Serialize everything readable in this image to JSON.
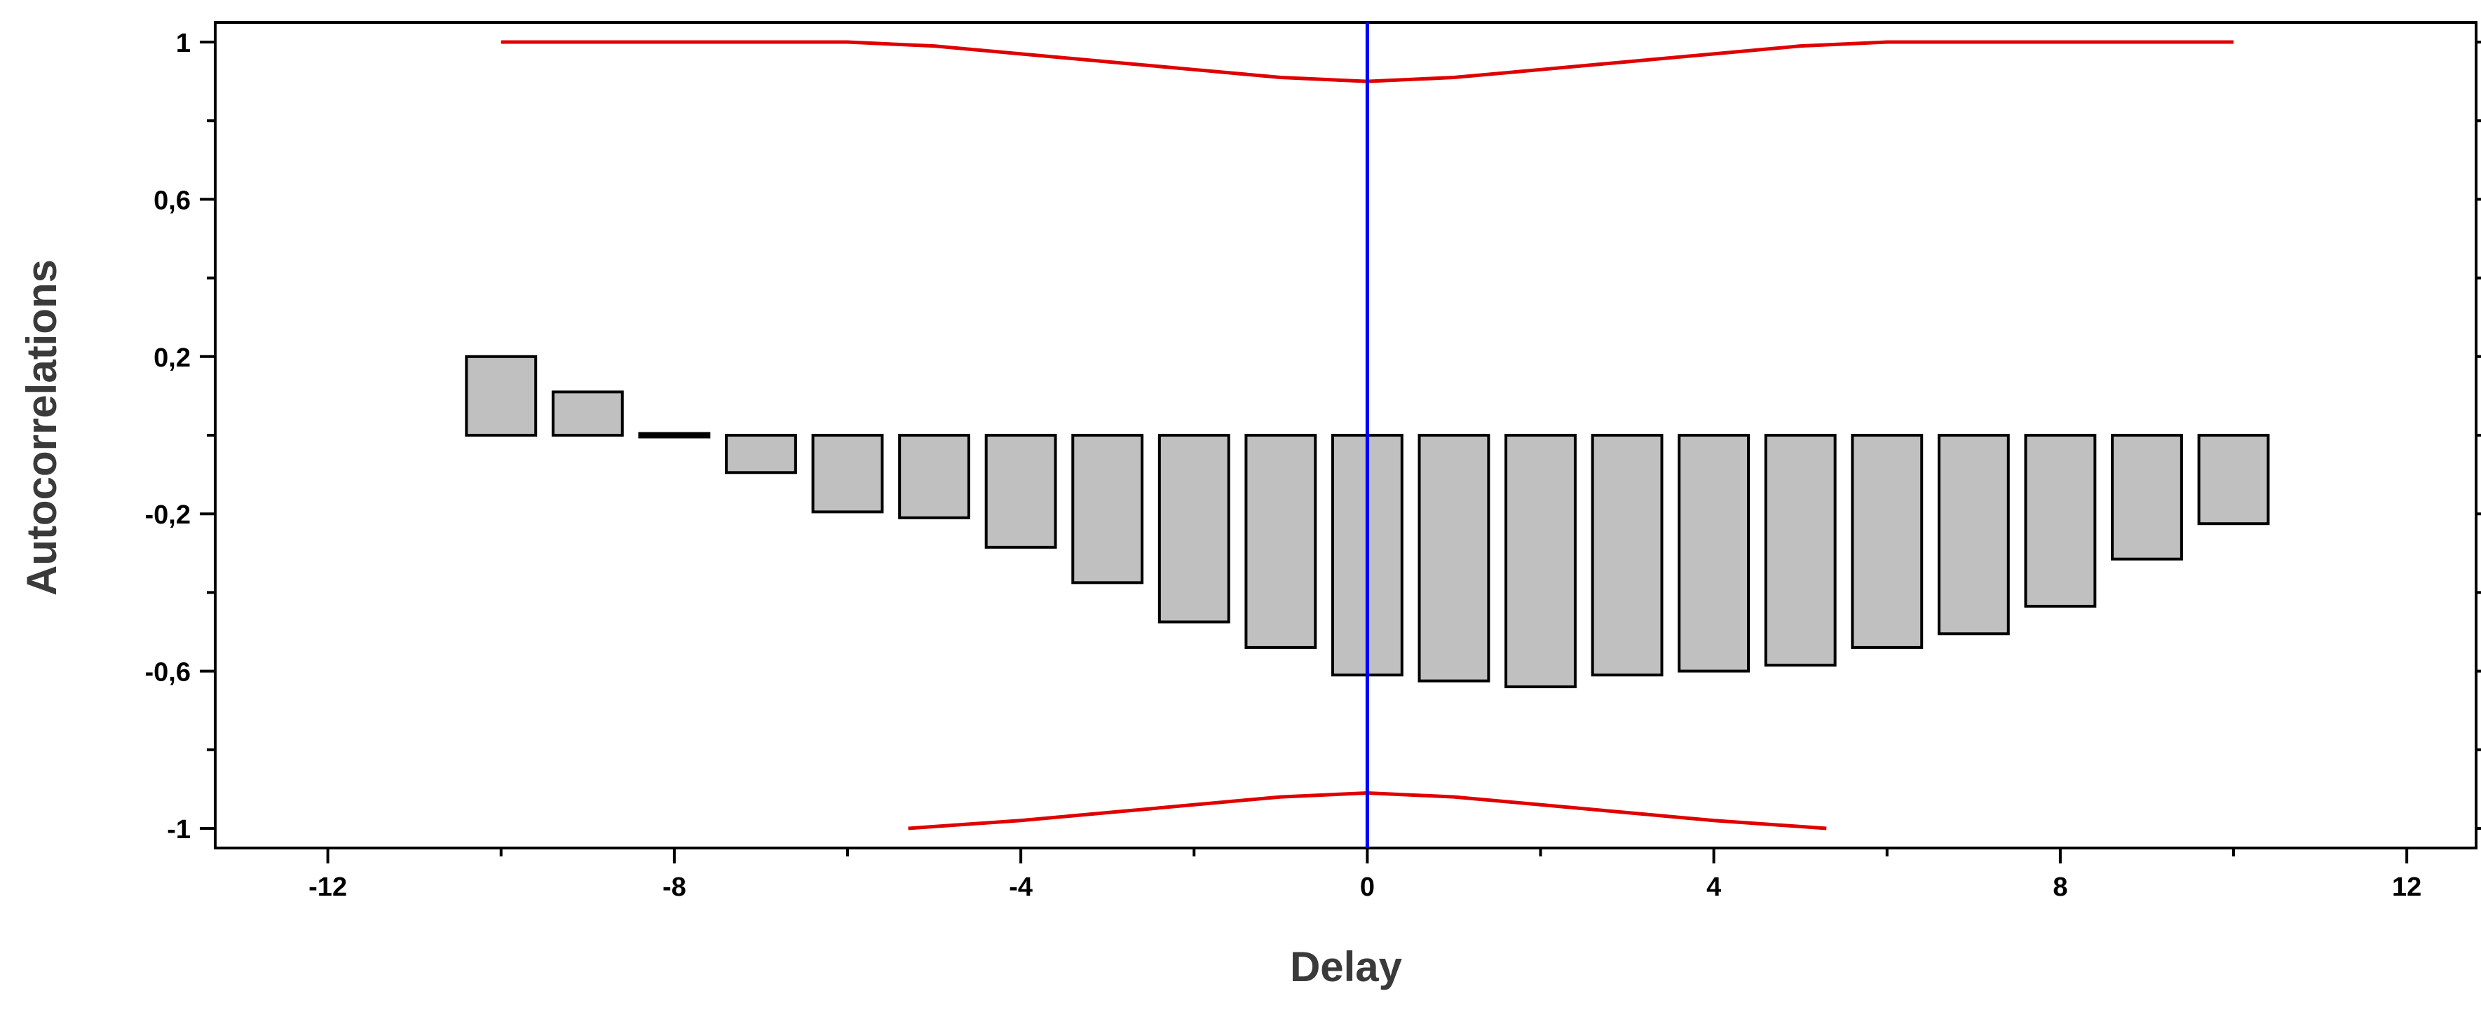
{
  "chart_data": {
    "type": "bar",
    "title": "",
    "xlabel": "Delay",
    "ylabel": "Autocorrelations",
    "xlim": [
      -13.3,
      12.8
    ],
    "ylim": [
      -1.05,
      1.05
    ],
    "x_ticks": [
      -12,
      -8,
      -4,
      0,
      4,
      8,
      12
    ],
    "x_tick_labels": [
      "-12",
      "-8",
      "-4",
      "0",
      "4",
      "8",
      "12"
    ],
    "y_ticks": [
      1,
      0.6,
      0.2,
      -0.2,
      -0.6,
      -1
    ],
    "y_tick_labels": [
      "1",
      "0,6",
      "0,2",
      "-0,2",
      "-0,6",
      "-1"
    ],
    "grid": false,
    "legend": false,
    "bar_width": 0.8,
    "x": [
      -10,
      -9,
      -8,
      -7,
      -6,
      -5,
      -4,
      -3,
      -2,
      -1,
      0,
      1,
      2,
      3,
      4,
      5,
      6,
      7,
      8,
      9,
      10
    ],
    "values": [
      0.2,
      0.11,
      0.0,
      -0.095,
      -0.195,
      -0.21,
      -0.285,
      -0.375,
      -0.475,
      -0.54,
      -0.61,
      -0.625,
      -0.64,
      -0.61,
      -0.6,
      -0.585,
      -0.54,
      -0.505,
      -0.435,
      -0.315,
      -0.225
    ],
    "zero_line": {
      "x": 0,
      "color": "#0000ff"
    },
    "bar_fill": "#c0c0c0",
    "bar_stroke": "#000000",
    "upper_limit": {
      "color": "#e00000",
      "x": [
        -10,
        -9,
        -8,
        -7,
        -6,
        -5,
        -4,
        -3,
        -2,
        -1,
        0,
        1,
        2,
        3,
        4,
        5,
        6,
        7,
        8,
        9,
        10
      ],
      "y": [
        1.0,
        1.0,
        1.0,
        1.0,
        1.0,
        0.99,
        0.97,
        0.95,
        0.93,
        0.91,
        0.9,
        0.91,
        0.93,
        0.95,
        0.97,
        0.99,
        1.0,
        1.0,
        1.0,
        1.0,
        1.0
      ]
    },
    "lower_limit": {
      "color": "#e00000",
      "x": [
        -5.3,
        -4,
        -3,
        -2,
        -1,
        0,
        1,
        2,
        3,
        4,
        5.3
      ],
      "y": [
        -1.0,
        -0.98,
        -0.96,
        -0.94,
        -0.92,
        -0.91,
        -0.92,
        -0.94,
        -0.96,
        -0.98,
        -1.0
      ]
    }
  }
}
